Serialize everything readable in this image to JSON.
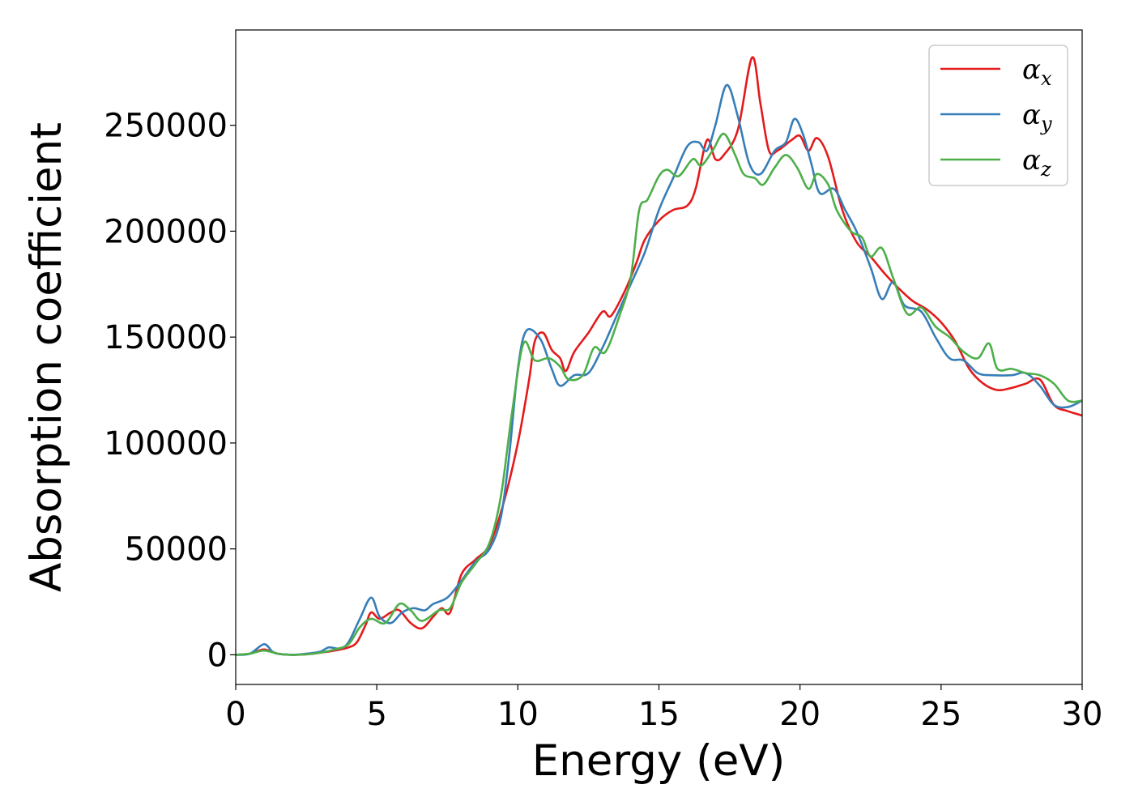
{
  "chart_data": {
    "type": "line",
    "title": "",
    "xlabel": "Energy (eV)",
    "ylabel": "Absorption coefficient",
    "xlim": [
      0,
      30
    ],
    "ylim": [
      -14000,
      295000
    ],
    "xticks": [
      0,
      5,
      10,
      15,
      20,
      25,
      30
    ],
    "xtick_labels": [
      "0",
      "5",
      "10",
      "15",
      "20",
      "25",
      "30"
    ],
    "yticks": [
      0,
      50000,
      100000,
      150000,
      200000,
      250000
    ],
    "ytick_labels": [
      "0",
      "50000",
      "100000",
      "150000",
      "200000",
      "250000"
    ],
    "grid": false,
    "legend_position": "top-right",
    "colors": {
      "alpha_x": "#e41a1c",
      "alpha_y": "#377eb8",
      "alpha_z": "#4daf4a"
    },
    "series": [
      {
        "name": "alpha_x",
        "legend_symbol": "α",
        "legend_subscript": "x",
        "points": [
          [
            0,
            0
          ],
          [
            0.5,
            500
          ],
          [
            1,
            2500
          ],
          [
            1.5,
            500
          ],
          [
            2,
            0
          ],
          [
            2.5,
            200
          ],
          [
            3,
            1000
          ],
          [
            3.5,
            2000
          ],
          [
            4,
            3500
          ],
          [
            4.3,
            6000
          ],
          [
            4.6,
            14000
          ],
          [
            4.8,
            20000
          ],
          [
            5.1,
            17000
          ],
          [
            5.5,
            20000
          ],
          [
            5.8,
            21000
          ],
          [
            6.2,
            15000
          ],
          [
            6.6,
            12500
          ],
          [
            7,
            18000
          ],
          [
            7.3,
            22000
          ],
          [
            7.6,
            20000
          ],
          [
            8,
            38000
          ],
          [
            8.5,
            45000
          ],
          [
            9,
            52000
          ],
          [
            9.5,
            72000
          ],
          [
            10,
            100000
          ],
          [
            10.4,
            130000
          ],
          [
            10.6,
            148000
          ],
          [
            10.9,
            152000
          ],
          [
            11.2,
            144000
          ],
          [
            11.5,
            140000
          ],
          [
            11.7,
            134000
          ],
          [
            12,
            143000
          ],
          [
            12.5,
            152000
          ],
          [
            13,
            162000
          ],
          [
            13.3,
            160000
          ],
          [
            13.8,
            172000
          ],
          [
            14.2,
            185000
          ],
          [
            14.5,
            196000
          ],
          [
            15,
            205000
          ],
          [
            15.5,
            210000
          ],
          [
            16,
            212000
          ],
          [
            16.3,
            220000
          ],
          [
            16.7,
            243000
          ],
          [
            17,
            234000
          ],
          [
            17.3,
            236000
          ],
          [
            17.8,
            248000
          ],
          [
            18.3,
            282000
          ],
          [
            18.6,
            260000
          ],
          [
            18.9,
            238000
          ],
          [
            19.2,
            238000
          ],
          [
            19.7,
            243000
          ],
          [
            20,
            245000
          ],
          [
            20.3,
            238000
          ],
          [
            20.6,
            244000
          ],
          [
            21,
            235000
          ],
          [
            21.5,
            210000
          ],
          [
            22,
            195000
          ],
          [
            22.5,
            188000
          ],
          [
            23,
            180000
          ],
          [
            23.5,
            173000
          ],
          [
            24,
            167000
          ],
          [
            24.5,
            163000
          ],
          [
            25,
            157000
          ],
          [
            25.5,
            148000
          ],
          [
            26,
            135000
          ],
          [
            26.5,
            128000
          ],
          [
            27,
            125000
          ],
          [
            27.5,
            126000
          ],
          [
            28,
            128000
          ],
          [
            28.5,
            130000
          ],
          [
            29,
            118000
          ],
          [
            29.5,
            115000
          ],
          [
            30,
            113000
          ]
        ]
      },
      {
        "name": "alpha_y",
        "legend_symbol": "α",
        "legend_subscript": "y",
        "points": [
          [
            0,
            0
          ],
          [
            0.5,
            500
          ],
          [
            1,
            5000
          ],
          [
            1.3,
            1500
          ],
          [
            1.5,
            500
          ],
          [
            2,
            0
          ],
          [
            2.5,
            500
          ],
          [
            3,
            1500
          ],
          [
            3.3,
            3500
          ],
          [
            3.7,
            3000
          ],
          [
            4,
            6000
          ],
          [
            4.4,
            17000
          ],
          [
            4.8,
            27000
          ],
          [
            5.1,
            18000
          ],
          [
            5.5,
            15000
          ],
          [
            5.9,
            20000
          ],
          [
            6.3,
            22000
          ],
          [
            6.7,
            21000
          ],
          [
            7,
            24000
          ],
          [
            7.5,
            27000
          ],
          [
            8,
            35000
          ],
          [
            8.5,
            44000
          ],
          [
            9,
            50000
          ],
          [
            9.4,
            65000
          ],
          [
            9.7,
            95000
          ],
          [
            10,
            135000
          ],
          [
            10.3,
            153000
          ],
          [
            10.8,
            149000
          ],
          [
            11.2,
            135000
          ],
          [
            11.5,
            127000
          ],
          [
            12,
            132000
          ],
          [
            12.5,
            133000
          ],
          [
            13,
            145000
          ],
          [
            13.5,
            160000
          ],
          [
            14,
            175000
          ],
          [
            14.5,
            190000
          ],
          [
            15,
            210000
          ],
          [
            15.5,
            225000
          ],
          [
            16,
            240000
          ],
          [
            16.4,
            242000
          ],
          [
            16.7,
            238000
          ],
          [
            17,
            250000
          ],
          [
            17.4,
            269000
          ],
          [
            17.8,
            254000
          ],
          [
            18.2,
            232000
          ],
          [
            18.6,
            227000
          ],
          [
            19.1,
            238000
          ],
          [
            19.5,
            242000
          ],
          [
            19.8,
            253000
          ],
          [
            20.1,
            246000
          ],
          [
            20.4,
            232000
          ],
          [
            20.7,
            218000
          ],
          [
            21.2,
            220000
          ],
          [
            21.6,
            210000
          ],
          [
            22,
            200000
          ],
          [
            22.5,
            183000
          ],
          [
            22.9,
            168000
          ],
          [
            23.3,
            176000
          ],
          [
            23.7,
            165000
          ],
          [
            24.3,
            162000
          ],
          [
            24.8,
            150000
          ],
          [
            25.3,
            140000
          ],
          [
            25.8,
            139000
          ],
          [
            26.3,
            133000
          ],
          [
            26.8,
            132000
          ],
          [
            27.5,
            132000
          ],
          [
            28,
            133000
          ],
          [
            28.5,
            127000
          ],
          [
            29,
            118000
          ],
          [
            29.5,
            117000
          ],
          [
            30,
            120000
          ]
        ]
      },
      {
        "name": "alpha_z",
        "legend_symbol": "α",
        "legend_subscript": "z",
        "points": [
          [
            0,
            0
          ],
          [
            0.5,
            500
          ],
          [
            1,
            2000
          ],
          [
            1.5,
            500
          ],
          [
            2,
            0
          ],
          [
            2.5,
            200
          ],
          [
            3,
            1000
          ],
          [
            3.5,
            2500
          ],
          [
            4,
            5000
          ],
          [
            4.4,
            13000
          ],
          [
            4.8,
            17000
          ],
          [
            5.3,
            15000
          ],
          [
            5.8,
            24000
          ],
          [
            6.2,
            21000
          ],
          [
            6.6,
            16000
          ],
          [
            7.2,
            21000
          ],
          [
            7.6,
            22000
          ],
          [
            8,
            34000
          ],
          [
            8.5,
            43000
          ],
          [
            9,
            53000
          ],
          [
            9.4,
            75000
          ],
          [
            9.8,
            115000
          ],
          [
            10.2,
            147000
          ],
          [
            10.6,
            139000
          ],
          [
            11.1,
            140000
          ],
          [
            11.5,
            136000
          ],
          [
            11.8,
            130000
          ],
          [
            12.3,
            132000
          ],
          [
            12.7,
            145000
          ],
          [
            13.1,
            143000
          ],
          [
            13.6,
            160000
          ],
          [
            14,
            178000
          ],
          [
            14.3,
            210000
          ],
          [
            14.6,
            215000
          ],
          [
            15,
            226000
          ],
          [
            15.3,
            229000
          ],
          [
            15.7,
            226000
          ],
          [
            16.2,
            234000
          ],
          [
            16.5,
            231000
          ],
          [
            16.9,
            238000
          ],
          [
            17.3,
            246000
          ],
          [
            17.7,
            236000
          ],
          [
            18,
            227000
          ],
          [
            18.4,
            225000
          ],
          [
            18.7,
            222000
          ],
          [
            19.1,
            230000
          ],
          [
            19.5,
            236000
          ],
          [
            19.9,
            230000
          ],
          [
            20.3,
            220000
          ],
          [
            20.6,
            227000
          ],
          [
            21,
            222000
          ],
          [
            21.3,
            210000
          ],
          [
            21.8,
            200000
          ],
          [
            22.2,
            197000
          ],
          [
            22.5,
            188000
          ],
          [
            22.9,
            192000
          ],
          [
            23.3,
            178000
          ],
          [
            23.8,
            161000
          ],
          [
            24.3,
            164000
          ],
          [
            24.8,
            155000
          ],
          [
            25.3,
            150000
          ],
          [
            25.8,
            143000
          ],
          [
            26.3,
            140000
          ],
          [
            26.7,
            147000
          ],
          [
            27,
            135000
          ],
          [
            27.5,
            135000
          ],
          [
            28,
            133000
          ],
          [
            28.5,
            132000
          ],
          [
            29,
            128000
          ],
          [
            29.5,
            120000
          ],
          [
            30,
            120000
          ]
        ]
      }
    ]
  }
}
